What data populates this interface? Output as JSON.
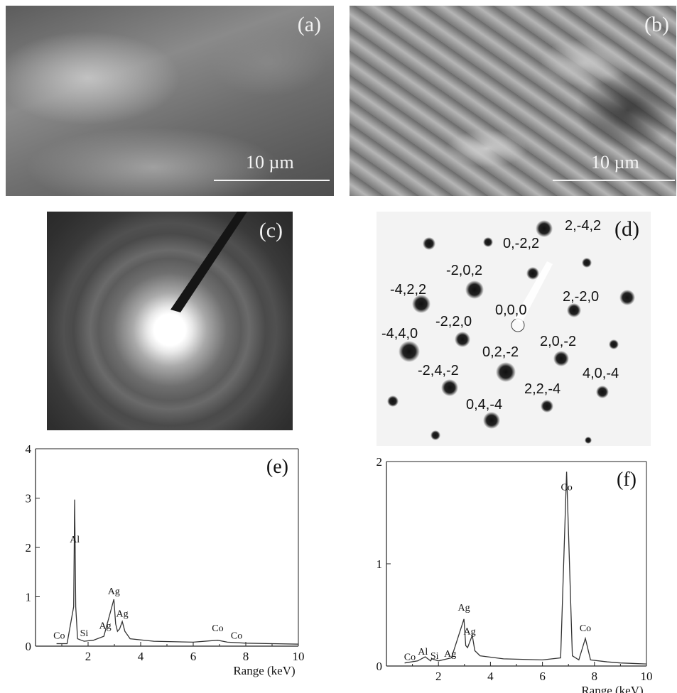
{
  "panels": {
    "a": {
      "label": "(a)",
      "scale": "10 µm"
    },
    "b": {
      "label": "(b)",
      "scale": "10 µm"
    },
    "c": {
      "label": "(c)"
    },
    "d": {
      "label": "(d)",
      "indices": [
        "2,-4,2",
        "0,-2,2",
        "-2,0,2",
        "-4,2,2",
        "2,-2,0",
        "0,0,0",
        "-2,2,0",
        "-4,4,0",
        "2,0,-2",
        "0,2,-2",
        "-2,4,-2",
        "4,0,-4",
        "2,2,-4",
        "0,4,-4"
      ]
    }
  },
  "chart_data": [
    {
      "type": "line",
      "label": "(e)",
      "xlabel": "Range (keV)",
      "xlim": [
        0,
        10
      ],
      "ylim": [
        0,
        4
      ],
      "xticks": [
        "2",
        "4",
        "6",
        "8",
        "10"
      ],
      "yticks": [
        "0",
        "1",
        "2",
        "3",
        "4"
      ],
      "x": [
        0.8,
        1.2,
        1.45,
        1.49,
        1.53,
        1.6,
        1.74,
        1.85,
        2.2,
        2.6,
        2.98,
        3.05,
        3.12,
        3.2,
        3.3,
        3.4,
        3.6,
        4.5,
        6.0,
        6.93,
        7.3,
        8.0,
        9.0,
        10.0
      ],
      "y": [
        0.05,
        0.05,
        0.8,
        2.97,
        0.8,
        0.15,
        0.12,
        0.1,
        0.12,
        0.2,
        0.95,
        0.45,
        0.3,
        0.35,
        0.5,
        0.3,
        0.15,
        0.1,
        0.08,
        0.12,
        0.08,
        0.06,
        0.05,
        0.04
      ],
      "annotations": [
        {
          "text": "Al",
          "x": 1.49,
          "y": 2.1
        },
        {
          "text": "Ag",
          "x": 2.98,
          "y": 1.05
        },
        {
          "text": "Ag",
          "x": 3.3,
          "y": 0.6
        },
        {
          "text": "Ag",
          "x": 2.65,
          "y": 0.35
        },
        {
          "text": "Si",
          "x": 1.85,
          "y": 0.2
        },
        {
          "text": "Co",
          "x": 0.9,
          "y": 0.15
        },
        {
          "text": "Co",
          "x": 6.93,
          "y": 0.3
        },
        {
          "text": "Co",
          "x": 7.65,
          "y": 0.15
        }
      ]
    },
    {
      "type": "line",
      "label": "(f)",
      "xlabel": "Range (keV)",
      "xlim": [
        0,
        10
      ],
      "ylim": [
        0,
        2
      ],
      "xticks": [
        "2",
        "4",
        "6",
        "8",
        "10"
      ],
      "yticks": [
        "0",
        "1",
        "2"
      ],
      "x": [
        0.7,
        1.2,
        1.49,
        1.7,
        1.74,
        2.0,
        2.5,
        2.98,
        3.05,
        3.12,
        3.3,
        3.4,
        3.6,
        4.5,
        6.0,
        6.7,
        6.93,
        7.15,
        7.4,
        7.65,
        7.85,
        8.5,
        9.0,
        10.0
      ],
      "y": [
        0.03,
        0.05,
        0.09,
        0.05,
        0.07,
        0.05,
        0.08,
        0.46,
        0.2,
        0.18,
        0.3,
        0.15,
        0.1,
        0.07,
        0.06,
        0.08,
        1.9,
        0.1,
        0.06,
        0.27,
        0.06,
        0.04,
        0.03,
        0.02
      ],
      "annotations": [
        {
          "text": "Co",
          "x": 6.93,
          "y": 1.72
        },
        {
          "text": "Co",
          "x": 7.65,
          "y": 0.34
        },
        {
          "text": "Ag",
          "x": 2.98,
          "y": 0.54
        },
        {
          "text": "Ag",
          "x": 3.2,
          "y": 0.31
        },
        {
          "text": "Ag",
          "x": 2.45,
          "y": 0.09
        },
        {
          "text": "Al",
          "x": 1.4,
          "y": 0.11
        },
        {
          "text": "Si",
          "x": 1.85,
          "y": 0.07
        },
        {
          "text": "Co",
          "x": 0.9,
          "y": 0.06
        }
      ]
    }
  ]
}
